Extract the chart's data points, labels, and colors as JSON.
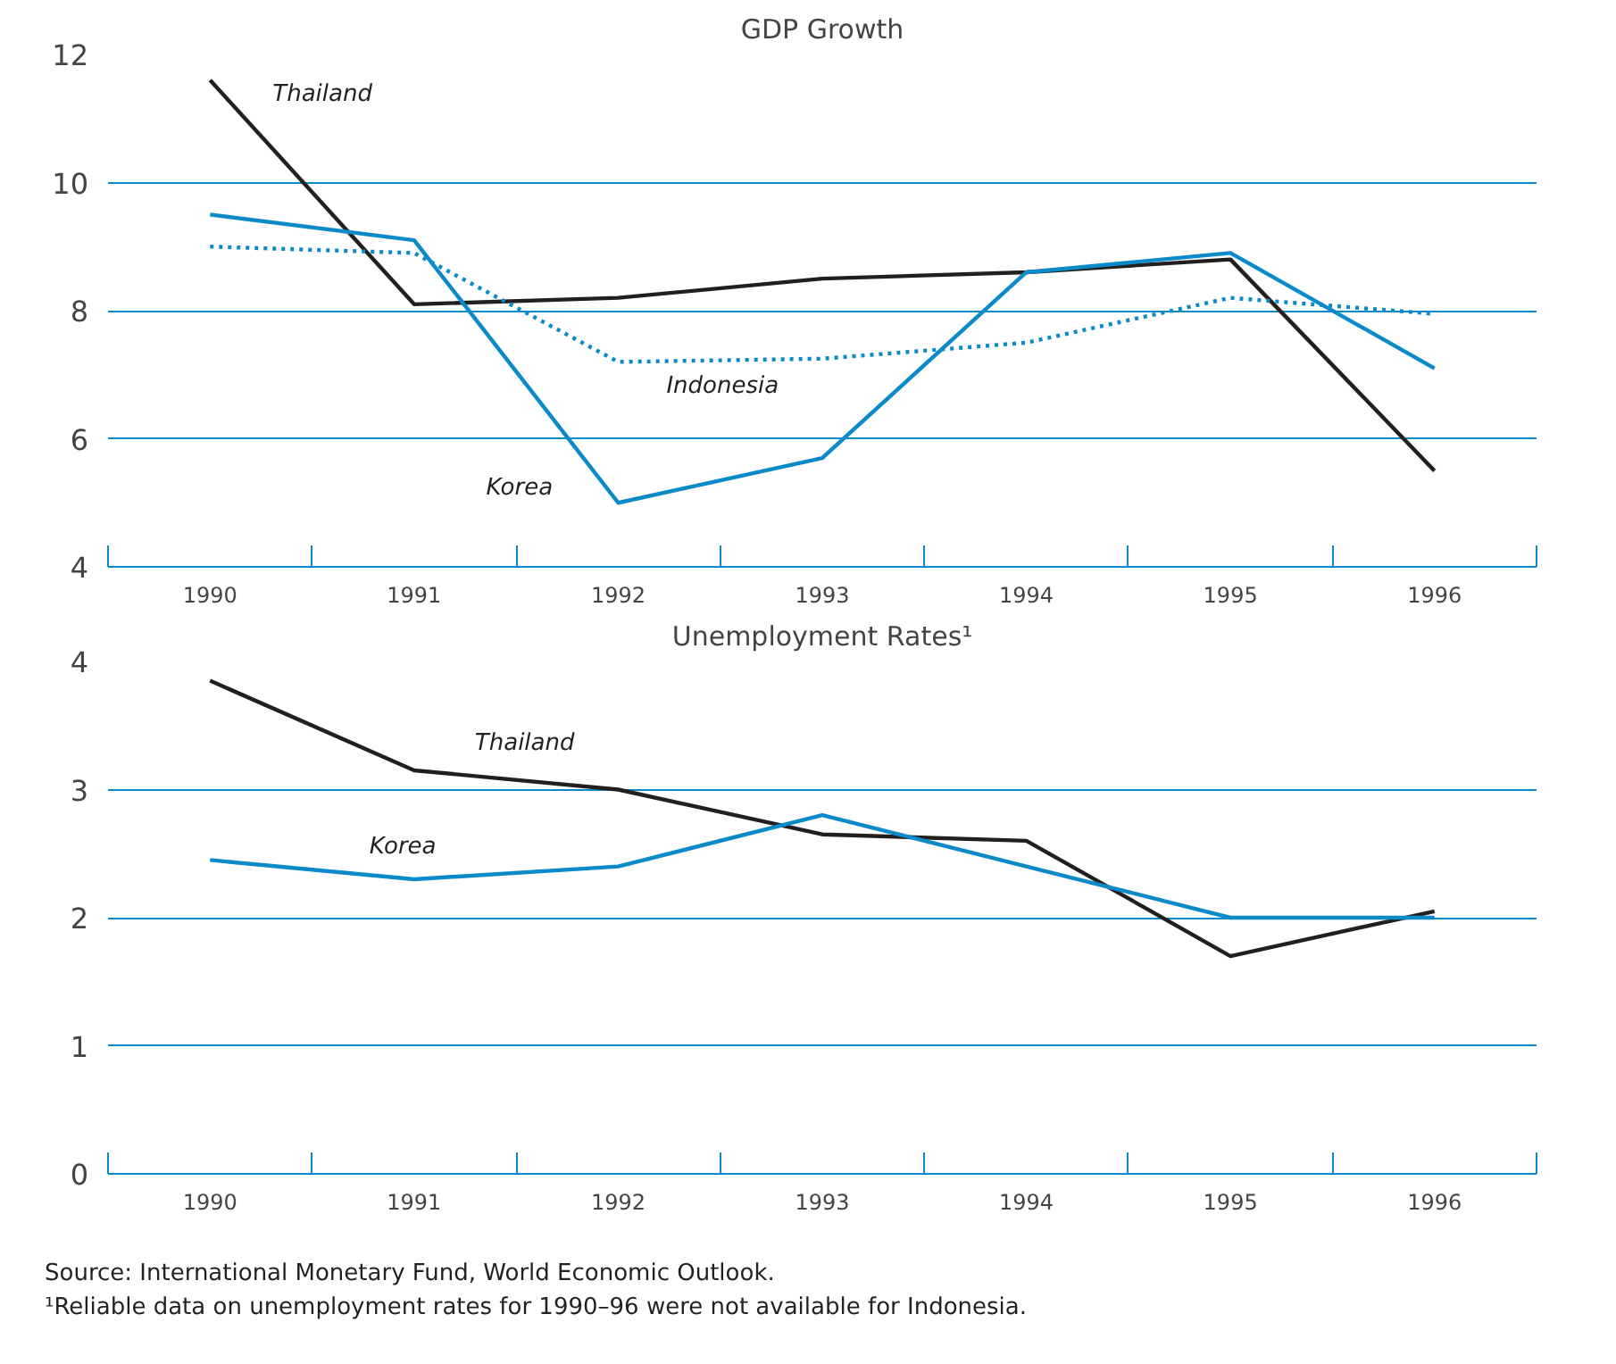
{
  "chart_data": [
    {
      "type": "line",
      "title": "GDP Growth",
      "categories": [
        "1990",
        "1991",
        "1992",
        "1993",
        "1994",
        "1995",
        "1996"
      ],
      "ylim": [
        4,
        12
      ],
      "yticks": [
        4,
        6,
        8,
        10,
        12
      ],
      "grid": "y",
      "legend": false,
      "marker": "none",
      "series": [
        {
          "name": "Thailand",
          "color": "#231f20",
          "line_style": "solid",
          "values": [
            11.6,
            8.1,
            8.2,
            8.5,
            8.6,
            8.8,
            5.5
          ]
        },
        {
          "name": "Indonesia",
          "color": "#0a8ac8",
          "line_style": "dotted",
          "values": [
            9.0,
            8.9,
            7.2,
            7.25,
            7.5,
            8.2,
            7.95
          ]
        },
        {
          "name": "Korea",
          "color": "#0a8ac8",
          "line_style": "solid",
          "values": [
            9.5,
            9.1,
            5.0,
            5.7,
            8.6,
            8.9,
            7.1
          ]
        }
      ]
    },
    {
      "type": "line",
      "title": "Unemployment Rates¹",
      "categories": [
        "1990",
        "1991",
        "1992",
        "1993",
        "1994",
        "1995",
        "1996"
      ],
      "ylim": [
        0,
        4
      ],
      "yticks": [
        0,
        1,
        2,
        3,
        4
      ],
      "grid": "y",
      "legend": false,
      "marker": "none",
      "series": [
        {
          "name": "Thailand",
          "color": "#231f20",
          "line_style": "solid",
          "values": [
            3.85,
            3.15,
            3.0,
            2.65,
            2.6,
            1.7,
            2.05
          ]
        },
        {
          "name": "Korea",
          "color": "#0a8ac8",
          "line_style": "solid",
          "values": [
            2.45,
            2.3,
            2.4,
            2.8,
            2.4,
            2.0,
            2.0
          ]
        }
      ],
      "annotations": [
        "Source: International Monetary Fund, World Economic Outlook.",
        "¹Reliable data on unemployment rates for 1990–96 were not available for Indonesia."
      ]
    }
  ]
}
